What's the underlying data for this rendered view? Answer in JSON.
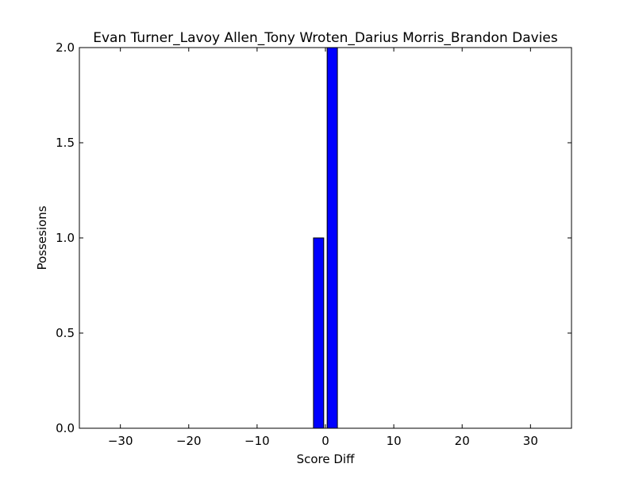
{
  "chart_data": {
    "type": "bar",
    "title": "Evan Turner_Lavoy Allen_Tony Wroten_Darius Morris_Brandon Davies",
    "xlabel": "Score Diff",
    "ylabel": "Possesions",
    "xlim": [
      -36,
      36
    ],
    "ylim": [
      0,
      2
    ],
    "x_ticks": [
      -30,
      -20,
      -10,
      0,
      10,
      20,
      30
    ],
    "x_tick_labels": [
      "−30",
      "−20",
      "−10",
      "0",
      "10",
      "20",
      "30"
    ],
    "y_ticks": [
      0,
      0.5,
      1,
      1.5,
      2
    ],
    "y_tick_labels": [
      "0.0",
      "0.5",
      "1.0",
      "1.5",
      "2.0"
    ],
    "bar_width": 1.5,
    "bars": [
      {
        "x": -1,
        "value": 1
      },
      {
        "x": 1,
        "value": 2
      }
    ],
    "colors": {
      "bar_fill": "#0000ff",
      "bar_edge": "#000000"
    },
    "grid": false,
    "legend": "none"
  }
}
